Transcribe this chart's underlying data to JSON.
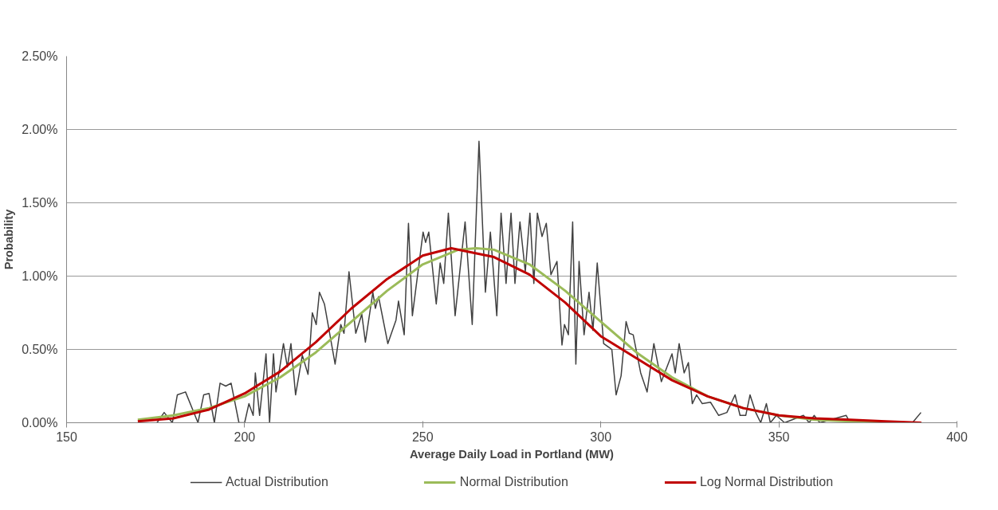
{
  "chart_data": {
    "type": "line",
    "xlabel": "Average Daily Load in Portland (MW)",
    "ylabel": "Probability",
    "xlim": [
      150,
      400
    ],
    "xticks": [
      150,
      200,
      250,
      300,
      350,
      400
    ],
    "ylim": [
      0,
      2.5
    ],
    "yticks": [
      {
        "value": 0,
        "label": "0.00%"
      },
      {
        "value": 0.5,
        "label": "0.50%"
      },
      {
        "value": 1,
        "label": "1.00%"
      },
      {
        "value": 1.5,
        "label": "1.50%"
      },
      {
        "value": 2,
        "label": "2.00%"
      },
      {
        "value": 2.5,
        "label": "2.50%"
      }
    ],
    "grid": "y",
    "legend": "bottom",
    "marker": "none",
    "series": [
      {
        "name": "Actual Distribution",
        "color": "#404040",
        "x": [
          175.4,
          177.4,
          179.7,
          181.1,
          183.4,
          186.9,
          188.5,
          190,
          191.5,
          193.1,
          194.7,
          196.2,
          198.4,
          200,
          201.2,
          202.4,
          203,
          204.2,
          206,
          207,
          208.1,
          208.8,
          210.9,
          212,
          213,
          214.3,
          216.2,
          217.8,
          219,
          220.1,
          221,
          222.4,
          225.4,
          227,
          227.9,
          229.3,
          231.2,
          232.9,
          233.9,
          236,
          236.7,
          237.6,
          240.2,
          242.5,
          243.2,
          244.8,
          246,
          247.1,
          250.1,
          250.8,
          251.7,
          253.8,
          254.9,
          255.9,
          257.2,
          259.1,
          261.9,
          263.9,
          265.8,
          267.6,
          269,
          270.8,
          272,
          273.4,
          274.8,
          275.9,
          277.3,
          278.8,
          280.1,
          281.2,
          282.2,
          283.5,
          284.7,
          286,
          287.7,
          289.1,
          289.8,
          290.9,
          292.1,
          293,
          293.9,
          295.3,
          296.7,
          297.8,
          299,
          300.8,
          303.1,
          304.3,
          305.7,
          307.1,
          308,
          309.1,
          311.2,
          313,
          314.9,
          317,
          320,
          320.9,
          322,
          323.4,
          324.6,
          325.7,
          326.9,
          328.5,
          330.8,
          333.1,
          335.4,
          337.7,
          339.1,
          340.7,
          341.9,
          343.5,
          344.9,
          346.5,
          347.6,
          349.3,
          351.6,
          356.9,
          358.5,
          359.9,
          361.5,
          368.9,
          370,
          387.5,
          389.9
        ],
        "values": [
          0,
          0.07,
          0,
          0.19,
          0.21,
          0,
          0.19,
          0.2,
          0,
          0.27,
          0.25,
          0.27,
          0,
          0,
          0.13,
          0.05,
          0.34,
          0.05,
          0.47,
          0,
          0.47,
          0.21,
          0.54,
          0.38,
          0.54,
          0.19,
          0.46,
          0.33,
          0.75,
          0.67,
          0.89,
          0.81,
          0.4,
          0.67,
          0.61,
          1.03,
          0.61,
          0.74,
          0.55,
          0.89,
          0.78,
          0.86,
          0.54,
          0.7,
          0.83,
          0.6,
          1.36,
          0.73,
          1.3,
          1.23,
          1.3,
          0.81,
          1.09,
          0.95,
          1.43,
          0.73,
          1.37,
          0.67,
          1.92,
          0.89,
          1.3,
          0.73,
          1.43,
          0.95,
          1.43,
          0.95,
          1.37,
          1.03,
          1.43,
          0.95,
          1.43,
          1.27,
          1.36,
          1.01,
          1.1,
          0.53,
          0.67,
          0.6,
          1.37,
          0.4,
          1.1,
          0.6,
          0.89,
          0.63,
          1.09,
          0.54,
          0.5,
          0.19,
          0.32,
          0.69,
          0.61,
          0.6,
          0.34,
          0.21,
          0.54,
          0.28,
          0.47,
          0.34,
          0.54,
          0.34,
          0.41,
          0.13,
          0.19,
          0.13,
          0.14,
          0.05,
          0.07,
          0.19,
          0.05,
          0.05,
          0.19,
          0.07,
          0,
          0.13,
          0,
          0.05,
          0,
          0.05,
          0,
          0.05,
          0,
          0.05,
          0,
          0,
          0.07
        ]
      },
      {
        "name": "Normal Distribution",
        "color": "#9bbb59",
        "x": [
          170,
          180,
          190,
          200,
          210,
          220,
          230,
          240,
          250,
          260,
          265,
          270,
          280,
          290,
          300,
          310,
          320,
          330,
          340,
          350,
          360,
          370,
          380,
          390
        ],
        "values": [
          0.02,
          0.05,
          0.1,
          0.18,
          0.31,
          0.48,
          0.69,
          0.9,
          1.08,
          1.18,
          1.19,
          1.18,
          1.08,
          0.9,
          0.69,
          0.48,
          0.31,
          0.18,
          0.1,
          0.05,
          0.02,
          0.01,
          0,
          0
        ]
      },
      {
        "name": "Log Normal Distribution",
        "color": "#c00000",
        "x": [
          170,
          180,
          190,
          200,
          210,
          220,
          230,
          240,
          250,
          258,
          270,
          280,
          290,
          300,
          310,
          320,
          330,
          340,
          350,
          360,
          370,
          380,
          390
        ],
        "values": [
          0.01,
          0.03,
          0.09,
          0.2,
          0.35,
          0.55,
          0.78,
          0.98,
          1.14,
          1.19,
          1.13,
          1.01,
          0.82,
          0.59,
          0.44,
          0.29,
          0.18,
          0.1,
          0.05,
          0.03,
          0.02,
          0.01,
          0
        ]
      }
    ]
  }
}
